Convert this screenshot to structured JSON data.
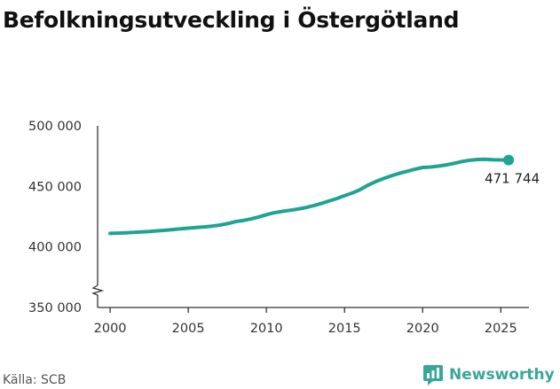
{
  "title": "Befolkningsutveckling i Östergötland",
  "source": "Källa: SCB",
  "brand": {
    "name": "Newsworthy",
    "color": "#3aa699"
  },
  "chart_data": {
    "type": "line",
    "title": "Befolkningsutveckling i Östergötland",
    "xlabel": "",
    "ylabel": "",
    "xlim": [
      1999.2,
      2026.8
    ],
    "ylim": [
      350000,
      500000
    ],
    "x_ticks": [
      2000,
      2005,
      2010,
      2015,
      2020,
      2025
    ],
    "x_tick_labels": [
      "2000",
      "2005",
      "2010",
      "2015",
      "2020",
      "2025"
    ],
    "y_ticks": [
      350000,
      400000,
      450000,
      500000
    ],
    "y_tick_labels": [
      "350 000",
      "400 000",
      "450 000",
      "500 000"
    ],
    "axis_break": true,
    "grid": false,
    "line_color": "#1fa393",
    "series": [
      {
        "x": [
          2000,
          2000.5,
          2001,
          2001.5,
          2002,
          2002.5,
          2003,
          2003.5,
          2004,
          2004.5,
          2005,
          2005.5,
          2006,
          2006.5,
          2007,
          2007.5,
          2008,
          2008.5,
          2009,
          2009.5,
          2010,
          2010.5,
          2011,
          2011.5,
          2012,
          2012.5,
          2013,
          2013.5,
          2014,
          2014.5,
          2015,
          2015.5,
          2016,
          2016.5,
          2017,
          2017.5,
          2018,
          2018.5,
          2019,
          2019.5,
          2020,
          2020.5,
          2021,
          2021.5,
          2022,
          2022.5,
          2023,
          2023.5,
          2024,
          2024.5,
          2025,
          2025.5
        ],
        "y": [
          411200,
          411400,
          411700,
          412000,
          412400,
          412800,
          413300,
          413700,
          414300,
          414900,
          415500,
          416000,
          416500,
          417200,
          418000,
          419200,
          420800,
          421800,
          423100,
          424700,
          426600,
          428200,
          429300,
          430300,
          431200,
          432500,
          434000,
          435800,
          437900,
          439900,
          442300,
          444500,
          447300,
          451000,
          454000,
          456500,
          458700,
          460700,
          462500,
          464200,
          465600,
          466000,
          466700,
          467700,
          469000,
          470500,
          471500,
          472200,
          472400,
          472000,
          471800,
          471744
        ]
      }
    ],
    "annotation": {
      "x": 2025.5,
      "y": 471744,
      "label": "471 744"
    }
  }
}
